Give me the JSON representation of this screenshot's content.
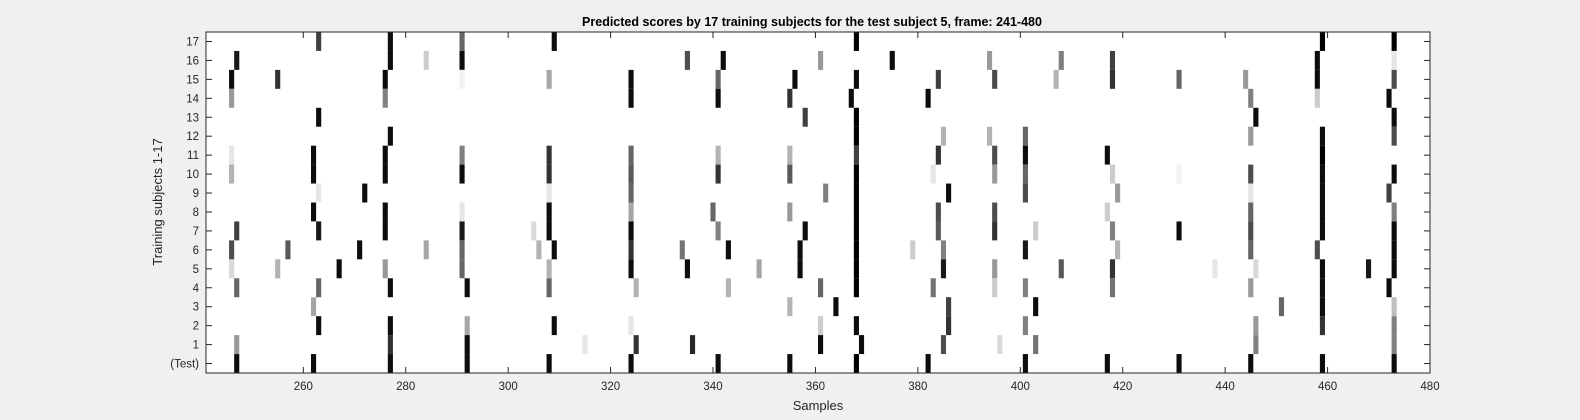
{
  "chart_data": {
    "type": "heatmap",
    "title": "Predicted scores by 17 training subjects for the test subject 5, frame: 241-480",
    "xlabel": "Samples",
    "ylabel": "Training subjects 1-17",
    "xlim": [
      241,
      480
    ],
    "x_ticks": [
      260,
      280,
      300,
      320,
      340,
      360,
      380,
      400,
      420,
      440,
      460,
      480
    ],
    "y_tick_labels": [
      "17",
      "16",
      "15",
      "14",
      "13",
      "12",
      "11",
      "10",
      "9",
      "8",
      "7",
      "6",
      "5",
      "4",
      "3",
      "2",
      "1",
      "(Test)"
    ],
    "colormap": "gray, 0 = white, 1 = black",
    "grid": false,
    "rows": [
      {
        "label": "17",
        "cells": [
          [
            263,
            0.75
          ],
          [
            277,
            0.95
          ],
          [
            291,
            0.6
          ],
          [
            309,
            0.95
          ],
          [
            368,
            1
          ],
          [
            459,
            1
          ],
          [
            473,
            1
          ]
        ]
      },
      {
        "label": "16",
        "cells": [
          [
            247,
            0.9
          ],
          [
            277,
            0.95
          ],
          [
            284,
            0.2
          ],
          [
            291,
            0.95
          ],
          [
            335,
            0.7
          ],
          [
            342,
            0.95
          ],
          [
            361,
            0.4
          ],
          [
            375,
            0.95
          ],
          [
            394,
            0.4
          ],
          [
            408,
            0.5
          ],
          [
            418,
            0.75
          ],
          [
            458,
            0.95
          ],
          [
            473,
            0.1
          ]
        ]
      },
      {
        "label": "15",
        "cells": [
          [
            246,
            0.95
          ],
          [
            255,
            0.8
          ],
          [
            276,
            0.95
          ],
          [
            291,
            0.05
          ],
          [
            308,
            0.35
          ],
          [
            324,
            0.95
          ],
          [
            341,
            0.6
          ],
          [
            356,
            0.95
          ],
          [
            368,
            0.95
          ],
          [
            384,
            0.75
          ],
          [
            395,
            0.7
          ],
          [
            407,
            0.3
          ],
          [
            418,
            0.8
          ],
          [
            431,
            0.6
          ],
          [
            444,
            0.4
          ],
          [
            458,
            0.95
          ],
          [
            473,
            0.7
          ]
        ]
      },
      {
        "label": "14",
        "cells": [
          [
            246,
            0.4
          ],
          [
            276,
            0.5
          ],
          [
            324,
            0.95
          ],
          [
            341,
            0.95
          ],
          [
            355,
            0.8
          ],
          [
            367,
            0.95
          ],
          [
            382,
            0.95
          ],
          [
            445,
            0.5
          ],
          [
            458,
            0.2
          ],
          [
            472,
            0.95
          ]
        ]
      },
      {
        "label": "13",
        "cells": [
          [
            263,
            0.95
          ],
          [
            358,
            0.75
          ],
          [
            368,
            1
          ],
          [
            446,
            0.95
          ],
          [
            473,
            0.95
          ]
        ]
      },
      {
        "label": "12",
        "cells": [
          [
            277,
            0.95
          ],
          [
            368,
            1
          ],
          [
            385,
            0.3
          ],
          [
            394,
            0.3
          ],
          [
            401,
            0.6
          ],
          [
            445,
            0.4
          ],
          [
            459,
            0.95
          ],
          [
            473,
            0.7
          ]
        ]
      },
      {
        "label": "11",
        "cells": [
          [
            246,
            0.1
          ],
          [
            262,
            0.95
          ],
          [
            276,
            0.95
          ],
          [
            291,
            0.5
          ],
          [
            308,
            0.8
          ],
          [
            324,
            0.6
          ],
          [
            341,
            0.3
          ],
          [
            355,
            0.3
          ],
          [
            368,
            0.75
          ],
          [
            384,
            0.8
          ],
          [
            395,
            0.7
          ],
          [
            401,
            0.95
          ],
          [
            417,
            0.95
          ],
          [
            459,
            1
          ]
        ]
      },
      {
        "label": "10",
        "cells": [
          [
            246,
            0.3
          ],
          [
            262,
            0.95
          ],
          [
            276,
            0.95
          ],
          [
            291,
            0.95
          ],
          [
            308,
            0.8
          ],
          [
            324,
            0.65
          ],
          [
            341,
            0.8
          ],
          [
            355,
            0.65
          ],
          [
            368,
            1
          ],
          [
            383,
            0.1
          ],
          [
            395,
            0.4
          ],
          [
            401,
            0.6
          ],
          [
            418,
            0.2
          ],
          [
            431,
            0.05
          ],
          [
            445,
            0.7
          ],
          [
            459,
            0.95
          ],
          [
            473,
            0.95
          ]
        ]
      },
      {
        "label": "9",
        "cells": [
          [
            263,
            0.1
          ],
          [
            272,
            0.95
          ],
          [
            308,
            0.1
          ],
          [
            324,
            0.6
          ],
          [
            362,
            0.5
          ],
          [
            368,
            1
          ],
          [
            386,
            0.95
          ],
          [
            401,
            0.7
          ],
          [
            419,
            0.4
          ],
          [
            445,
            0.1
          ],
          [
            459,
            0.95
          ],
          [
            472,
            0.75
          ]
        ]
      },
      {
        "label": "8",
        "cells": [
          [
            262,
            0.95
          ],
          [
            276,
            0.95
          ],
          [
            291,
            0.1
          ],
          [
            308,
            0.95
          ],
          [
            324,
            0.35
          ],
          [
            340,
            0.6
          ],
          [
            355,
            0.4
          ],
          [
            368,
            1
          ],
          [
            384,
            0.7
          ],
          [
            395,
            0.7
          ],
          [
            417,
            0.2
          ],
          [
            445,
            0.6
          ],
          [
            459,
            0.95
          ],
          [
            473,
            0.5
          ]
        ]
      },
      {
        "label": "7",
        "cells": [
          [
            247,
            0.75
          ],
          [
            263,
            0.9
          ],
          [
            276,
            0.95
          ],
          [
            291,
            0.9
          ],
          [
            305,
            0.15
          ],
          [
            308,
            0.95
          ],
          [
            324,
            0.95
          ],
          [
            341,
            0.5
          ],
          [
            358,
            0.95
          ],
          [
            368,
            1
          ],
          [
            384,
            0.65
          ],
          [
            395,
            0.8
          ],
          [
            403,
            0.2
          ],
          [
            418,
            0.5
          ],
          [
            431,
            0.95
          ],
          [
            445,
            0.7
          ],
          [
            459,
            0.95
          ],
          [
            473,
            0.95
          ]
        ]
      },
      {
        "label": "6",
        "cells": [
          [
            246,
            0.7
          ],
          [
            257,
            0.65
          ],
          [
            271,
            0.95
          ],
          [
            284,
            0.35
          ],
          [
            291,
            0.6
          ],
          [
            306,
            0.3
          ],
          [
            309,
            0.95
          ],
          [
            324,
            0.8
          ],
          [
            334,
            0.55
          ],
          [
            343,
            0.95
          ],
          [
            357,
            0.95
          ],
          [
            368,
            1
          ],
          [
            379,
            0.2
          ],
          [
            385,
            0.5
          ],
          [
            401,
            0.9
          ],
          [
            419,
            0.3
          ],
          [
            445,
            0.6
          ],
          [
            458,
            0.7
          ],
          [
            473,
            0.95
          ]
        ]
      },
      {
        "label": "5",
        "cells": [
          [
            246,
            0.15
          ],
          [
            255,
            0.3
          ],
          [
            267,
            0.95
          ],
          [
            276,
            0.4
          ],
          [
            291,
            0.6
          ],
          [
            308,
            0.3
          ],
          [
            324,
            0.95
          ],
          [
            335,
            0.95
          ],
          [
            349,
            0.35
          ],
          [
            357,
            0.95
          ],
          [
            368,
            1
          ],
          [
            385,
            0.9
          ],
          [
            395,
            0.4
          ],
          [
            408,
            0.65
          ],
          [
            418,
            0.8
          ],
          [
            438,
            0.1
          ],
          [
            446,
            0.15
          ],
          [
            459,
            0.95
          ],
          [
            468,
            0.9
          ],
          [
            473,
            0.95
          ]
        ]
      },
      {
        "label": "4",
        "cells": [
          [
            247,
            0.6
          ],
          [
            263,
            0.6
          ],
          [
            277,
            0.95
          ],
          [
            292,
            0.95
          ],
          [
            308,
            0.6
          ],
          [
            325,
            0.3
          ],
          [
            343,
            0.3
          ],
          [
            361,
            0.6
          ],
          [
            368,
            1
          ],
          [
            383,
            0.55
          ],
          [
            395,
            0.2
          ],
          [
            401,
            0.5
          ],
          [
            418,
            0.55
          ],
          [
            445,
            0.4
          ],
          [
            459,
            0.95
          ],
          [
            472,
            0.95
          ]
        ]
      },
      {
        "label": "3",
        "cells": [
          [
            262,
            0.35
          ],
          [
            355,
            0.3
          ],
          [
            364,
            0.95
          ],
          [
            386,
            0.75
          ],
          [
            403,
            0.95
          ],
          [
            451,
            0.6
          ],
          [
            459,
            0.95
          ],
          [
            473,
            0.25
          ]
        ]
      },
      {
        "label": "2",
        "cells": [
          [
            263,
            0.95
          ],
          [
            277,
            0.95
          ],
          [
            292,
            0.35
          ],
          [
            309,
            0.95
          ],
          [
            324,
            0.1
          ],
          [
            361,
            0.2
          ],
          [
            368,
            0.95
          ],
          [
            386,
            0.8
          ],
          [
            401,
            0.5
          ],
          [
            446,
            0.4
          ],
          [
            459,
            0.8
          ],
          [
            473,
            0.5
          ]
        ]
      },
      {
        "label": "1",
        "cells": [
          [
            247,
            0.4
          ],
          [
            277,
            0.8
          ],
          [
            292,
            0.95
          ],
          [
            315,
            0.1
          ],
          [
            325,
            0.8
          ],
          [
            336,
            0.85
          ],
          [
            361,
            0.95
          ],
          [
            369,
            0.95
          ],
          [
            385,
            0.7
          ],
          [
            396,
            0.15
          ],
          [
            403,
            0.55
          ],
          [
            446,
            0.5
          ],
          [
            473,
            0.5
          ]
        ]
      },
      {
        "label": "(Test)",
        "cells": [
          [
            247,
            0.95
          ],
          [
            262,
            0.95
          ],
          [
            277,
            0.95
          ],
          [
            292,
            0.95
          ],
          [
            308,
            0.95
          ],
          [
            324,
            0.95
          ],
          [
            341,
            0.95
          ],
          [
            355,
            0.95
          ],
          [
            368,
            1
          ],
          [
            382,
            0.95
          ],
          [
            401,
            0.95
          ],
          [
            417,
            0.95
          ],
          [
            431,
            0.95
          ],
          [
            445,
            0.95
          ],
          [
            459,
            0.95
          ],
          [
            473,
            0.95
          ]
        ]
      }
    ]
  }
}
